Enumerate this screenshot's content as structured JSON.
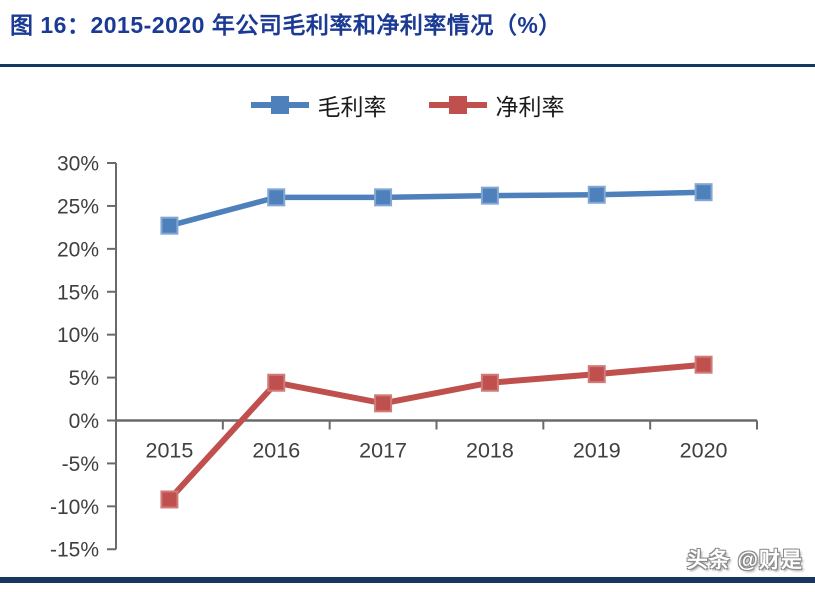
{
  "title": "图 16：2015-2020 年公司毛利率和净利率情况（%）",
  "watermark": "头条 @财是",
  "colors": {
    "title_blue": "#1B3A94",
    "rule_navy": "#17375E",
    "axis_gray": "#6A6A6A",
    "tick_label_gray": "#3F3F3F"
  },
  "legend": {
    "items": [
      {
        "label": "毛利率",
        "color": "#4E80BC"
      },
      {
        "label": "净利率",
        "color": "#C0504D"
      }
    ]
  },
  "chart_data": {
    "type": "line",
    "title": "图 16：2015-2020 年公司毛利率和净利率情况（%）",
    "categories": [
      "2015",
      "2016",
      "2017",
      "2018",
      "2019",
      "2020"
    ],
    "series": [
      {
        "name": "毛利率",
        "color": "#4E80BC",
        "marker_edge_color": "#83A7D1",
        "marker": "square",
        "values": [
          22.7,
          26.0,
          26.0,
          26.2,
          26.3,
          26.6
        ]
      },
      {
        "name": "净利率",
        "color": "#C0504D",
        "marker_edge_color": "#CF7B79",
        "marker": "square",
        "values": [
          -9.2,
          4.4,
          2.0,
          4.4,
          5.4,
          6.5
        ]
      }
    ],
    "xlabel": "",
    "ylabel": "",
    "ylim": [
      -15,
      30
    ],
    "y_tick_step": 5,
    "y_tick_labels": [
      "30%",
      "25%",
      "20%",
      "15%",
      "10%",
      "5%",
      "0%",
      "-5%",
      "-10%",
      "-15%"
    ],
    "grid": false,
    "legend_position": "top"
  }
}
